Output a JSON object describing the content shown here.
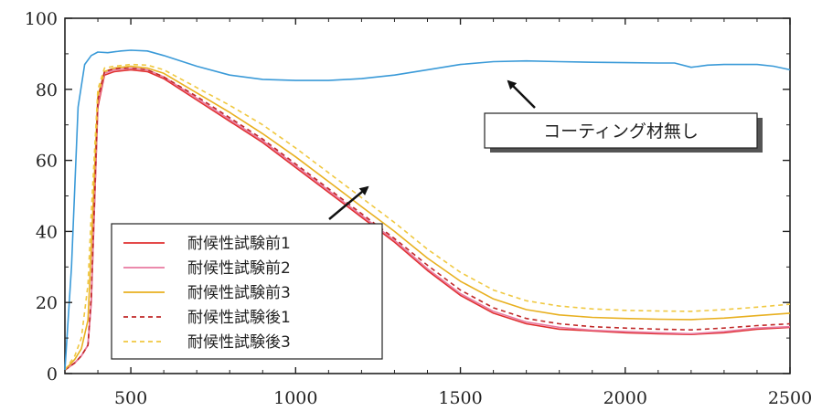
{
  "chart_data": {
    "type": "line",
    "xlim": [
      300,
      2500
    ],
    "ylim": [
      0,
      100
    ],
    "x_ticks": [
      "500",
      "1000",
      "1500",
      "2000",
      "2500"
    ],
    "y_ticks": [
      "0",
      "20",
      "40",
      "60",
      "80",
      "100"
    ],
    "grid": false,
    "legend_position": "lower-left",
    "series": [
      {
        "name": "耐候性試験前1",
        "color": "#e03030",
        "style": "solid",
        "x": [
          300,
          330,
          350,
          370,
          380,
          400,
          420,
          450,
          500,
          550,
          600,
          700,
          800,
          900,
          1000,
          1100,
          1200,
          1300,
          1400,
          1500,
          1600,
          1700,
          1800,
          1900,
          2000,
          2100,
          2200,
          2300,
          2400,
          2500
        ],
        "y": [
          1,
          3,
          5,
          8,
          20,
          75,
          84,
          85,
          85.5,
          85,
          83,
          77,
          71,
          65,
          58,
          51,
          44,
          37,
          29,
          22,
          17,
          14,
          12.5,
          12,
          11.5,
          11.2,
          11,
          11.5,
          12.5,
          13
        ]
      },
      {
        "name": "耐候性試験前2",
        "color": "#e87aa0",
        "style": "solid",
        "x": [
          300,
          330,
          350,
          370,
          380,
          400,
          420,
          450,
          500,
          550,
          600,
          700,
          800,
          900,
          1000,
          1100,
          1200,
          1300,
          1400,
          1500,
          1600,
          1700,
          1800,
          1900,
          2000,
          2100,
          2200,
          2300,
          2400,
          2500
        ],
        "y": [
          1,
          3,
          5,
          8,
          20,
          76,
          84.5,
          85.5,
          86,
          85.5,
          83.5,
          77.5,
          71.5,
          65.5,
          58.5,
          51.5,
          44.5,
          37.5,
          29.5,
          22.5,
          17.5,
          14.5,
          13,
          12.2,
          11.8,
          11.5,
          11.2,
          11.8,
          12.8,
          13.2
        ]
      },
      {
        "name": "耐候性試験前3",
        "color": "#e8b020",
        "style": "solid",
        "x": [
          300,
          330,
          350,
          370,
          380,
          400,
          420,
          450,
          500,
          550,
          600,
          700,
          800,
          900,
          1000,
          1100,
          1200,
          1300,
          1400,
          1500,
          1600,
          1700,
          1800,
          1900,
          2000,
          2100,
          2200,
          2300,
          2400,
          2500
        ],
        "y": [
          1,
          4,
          7,
          15,
          35,
          78,
          85,
          86,
          86.5,
          86,
          84.5,
          79,
          73.5,
          67.5,
          61,
          54,
          47,
          40,
          32.5,
          26,
          21,
          18,
          16.5,
          15.8,
          15.5,
          15.3,
          15.2,
          15.6,
          16.3,
          17
        ]
      },
      {
        "name": "耐候性試験後1",
        "color": "#c02828",
        "style": "dashed",
        "x": [
          300,
          330,
          350,
          370,
          380,
          400,
          420,
          450,
          500,
          550,
          600,
          700,
          800,
          900,
          1000,
          1100,
          1200,
          1300,
          1400,
          1500,
          1600,
          1700,
          1800,
          1900,
          2000,
          2100,
          2200,
          2300,
          2400,
          2500
        ],
        "y": [
          1,
          3,
          5,
          8,
          22,
          77,
          85,
          85.8,
          86,
          85.5,
          83.5,
          78,
          72,
          66,
          59,
          52,
          45,
          38,
          30.5,
          23.5,
          18.5,
          15.5,
          14,
          13.2,
          12.8,
          12.5,
          12.3,
          12.8,
          13.5,
          14
        ]
      },
      {
        "name": "耐候性試験後3",
        "color": "#f0c840",
        "style": "dashed",
        "x": [
          300,
          330,
          350,
          370,
          380,
          400,
          420,
          450,
          500,
          550,
          600,
          700,
          800,
          900,
          1000,
          1100,
          1200,
          1300,
          1400,
          1500,
          1600,
          1700,
          1800,
          1900,
          2000,
          2100,
          2200,
          2300,
          2400,
          2500
        ],
        "y": [
          1,
          5,
          10,
          25,
          45,
          80,
          86,
          86.5,
          87,
          86.8,
          85.5,
          80.5,
          75.5,
          70,
          63.5,
          56.5,
          49.5,
          42.5,
          35,
          28.5,
          23.5,
          20.5,
          19,
          18.2,
          17.8,
          17.6,
          17.5,
          18,
          18.7,
          19.5
        ]
      },
      {
        "name": "コーティング材無し",
        "color": "#3a9ad8",
        "style": "solid",
        "x": [
          300,
          320,
          340,
          360,
          380,
          400,
          430,
          470,
          500,
          550,
          600,
          700,
          800,
          900,
          1000,
          1100,
          1200,
          1300,
          1400,
          1500,
          1600,
          1700,
          1800,
          1900,
          2000,
          2100,
          2150,
          2200,
          2250,
          2300,
          2400,
          2450,
          2500
        ],
        "y": [
          1,
          30,
          75,
          87,
          89.5,
          90.5,
          90.3,
          90.8,
          91,
          90.8,
          89.5,
          86.5,
          84,
          82.8,
          82.5,
          82.5,
          83,
          84,
          85.5,
          87,
          87.8,
          88,
          87.8,
          87.6,
          87.5,
          87.4,
          87.4,
          86.2,
          86.8,
          87,
          87,
          86.5,
          85.5
        ]
      }
    ],
    "legend_order": [
      0,
      1,
      2,
      3,
      4
    ],
    "annotation": {
      "text": "コーティング材無し"
    }
  }
}
